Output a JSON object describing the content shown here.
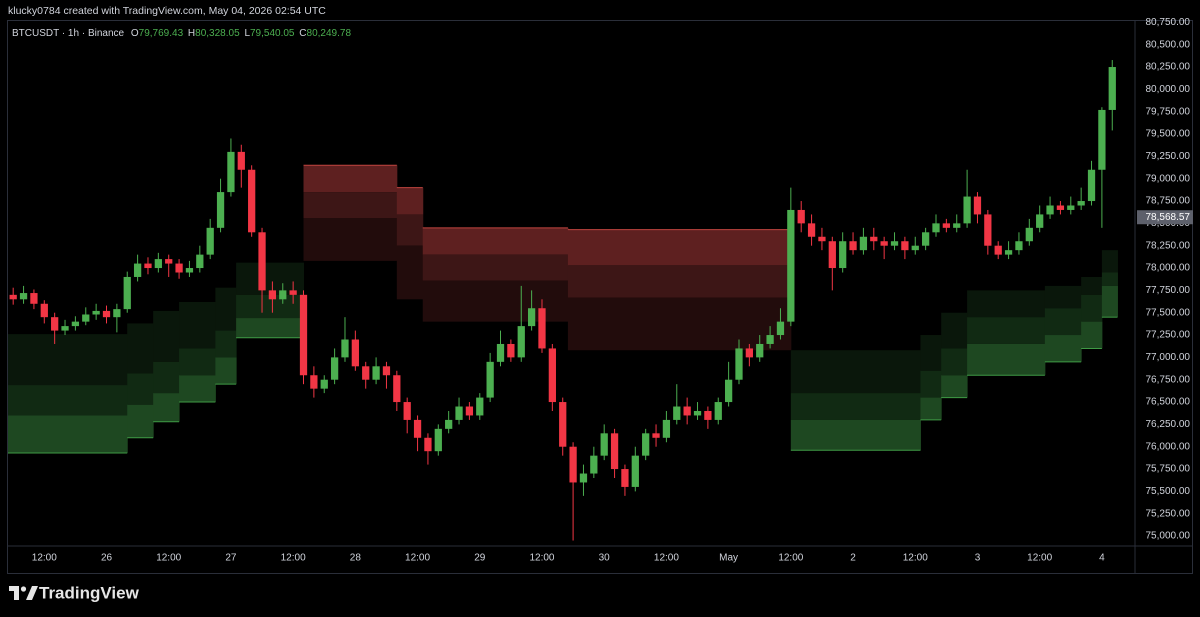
{
  "header": {
    "attribution": "klucky0784 created with TradingView.com, May 04, 2026 02:54 UTC"
  },
  "footer": {
    "brand": "TradingView"
  },
  "chart_data": {
    "type": "candlestick",
    "title": "BTCUSDT · 1h · Binance",
    "ohlc_labels": [
      {
        "key": "O",
        "text": "79,769.43"
      },
      {
        "key": "H",
        "text": "80,328.05"
      },
      {
        "key": "L",
        "text": "79,540.05"
      },
      {
        "key": "C",
        "text": "80,249.78"
      }
    ],
    "up_color": "#4caf50",
    "down_color": "#f23645",
    "x": [
      6,
      8,
      10,
      12,
      14,
      16,
      18,
      20,
      22,
      24,
      26,
      28,
      30,
      32,
      34,
      36,
      38,
      40,
      42,
      44,
      46,
      48,
      50,
      52,
      54,
      56,
      58,
      60,
      62,
      64,
      66,
      68,
      70,
      72,
      74,
      76,
      78,
      80,
      82,
      84,
      86,
      88,
      90,
      92,
      94,
      96,
      98,
      100,
      102,
      104,
      106,
      108,
      110,
      112,
      114,
      116,
      118,
      120,
      122,
      124,
      126,
      128,
      130,
      132,
      134,
      136,
      138,
      140,
      142,
      144,
      146,
      148,
      150,
      152,
      154,
      156,
      158,
      160,
      162,
      164,
      166,
      168,
      170,
      172,
      174,
      176,
      178,
      180,
      182,
      184,
      186,
      188,
      190,
      192,
      194,
      196,
      198,
      200,
      202,
      204,
      206,
      208,
      210,
      212,
      214,
      216,
      218
    ],
    "open": [
      77700,
      77650,
      77720,
      77600,
      77450,
      77300,
      77350,
      77400,
      77480,
      77520,
      77450,
      77540,
      77900,
      78050,
      78000,
      78100,
      78050,
      77950,
      78000,
      78150,
      78450,
      78850,
      79300,
      79100,
      78400,
      77750,
      77650,
      77750,
      77700,
      76800,
      76650,
      76750,
      77000,
      77200,
      76900,
      76750,
      76900,
      76800,
      76500,
      76300,
      76100,
      75950,
      76200,
      76300,
      76450,
      76350,
      76550,
      76950,
      77150,
      77000,
      77350,
      77550,
      77100,
      76500,
      76000,
      75600,
      75700,
      75900,
      76150,
      75750,
      75550,
      75900,
      76150,
      76100,
      76300,
      76450,
      76350,
      76400,
      76300,
      76500,
      76750,
      77100,
      77000,
      77150,
      77250,
      77400,
      78650,
      78500,
      78350,
      78300,
      78000,
      78300,
      78200,
      78350,
      78300,
      78250,
      78300,
      78200,
      78250,
      78400,
      78500,
      78450,
      78500,
      78800,
      78600,
      78250,
      78150,
      78200,
      78300,
      78450,
      78600,
      78700,
      78650,
      78700,
      78750,
      79100,
      79769.43
    ],
    "high": [
      77780,
      77800,
      77760,
      77640,
      77500,
      77420,
      77460,
      77560,
      77600,
      77580,
      77600,
      77960,
      78150,
      78120,
      78170,
      78150,
      78100,
      78080,
      78250,
      78550,
      79000,
      79450,
      79380,
      79150,
      78450,
      77850,
      77830,
      77850,
      77750,
      76900,
      76800,
      77100,
      77450,
      77300,
      76950,
      77000,
      76950,
      76850,
      76550,
      76350,
      76150,
      76250,
      76400,
      76550,
      76500,
      76600,
      77050,
      77300,
      77200,
      77800,
      77750,
      77650,
      77150,
      76550,
      76050,
      75800,
      76000,
      76250,
      76200,
      75800,
      76000,
      76200,
      76250,
      76400,
      76700,
      76550,
      76500,
      76450,
      76550,
      76950,
      77200,
      77150,
      77250,
      77350,
      77550,
      78900,
      78750,
      78600,
      78450,
      78350,
      78400,
      78400,
      78450,
      78450,
      78350,
      78400,
      78350,
      78350,
      78450,
      78600,
      78550,
      78600,
      79100,
      78850,
      78650,
      78300,
      78300,
      78400,
      78550,
      78700,
      78800,
      78750,
      78800,
      78900,
      79200,
      79800,
      80328.05
    ],
    "low": [
      77590,
      77600,
      77540,
      77380,
      77150,
      77250,
      77300,
      77360,
      77420,
      77380,
      77280,
      77500,
      77850,
      77930,
      77950,
      77900,
      77880,
      77900,
      77950,
      78100,
      78400,
      78800,
      78900,
      78350,
      77500,
      77500,
      77600,
      77600,
      76700,
      76550,
      76600,
      76700,
      76950,
      76850,
      76650,
      76700,
      76650,
      76400,
      76150,
      75950,
      75800,
      75900,
      76150,
      76250,
      76300,
      76300,
      76500,
      76900,
      76950,
      76950,
      77300,
      77050,
      76400,
      75900,
      74950,
      75450,
      75650,
      75850,
      75650,
      75450,
      75500,
      75850,
      76000,
      76050,
      76250,
      76250,
      76300,
      76200,
      76250,
      76450,
      76700,
      76900,
      76950,
      77100,
      77200,
      77350,
      78400,
      78250,
      78200,
      77750,
      77950,
      78150,
      78150,
      78200,
      78100,
      78200,
      78100,
      78150,
      78200,
      78350,
      78400,
      78400,
      78450,
      78500,
      78150,
      78100,
      78100,
      78150,
      78250,
      78400,
      78550,
      78600,
      78600,
      78650,
      78700,
      78450,
      79540.05
    ],
    "close": [
      77650,
      77720,
      77600,
      77450,
      77300,
      77350,
      77400,
      77480,
      77520,
      77450,
      77540,
      77900,
      78050,
      78000,
      78100,
      78050,
      77950,
      78000,
      78150,
      78450,
      78850,
      79300,
      79100,
      78400,
      77750,
      77650,
      77750,
      77700,
      76800,
      76650,
      76750,
      77000,
      77200,
      76900,
      76750,
      76900,
      76800,
      76500,
      76300,
      76100,
      75950,
      76200,
      76300,
      76450,
      76350,
      76550,
      76950,
      77150,
      77000,
      77350,
      77550,
      77100,
      76500,
      76000,
      75600,
      75700,
      75900,
      76150,
      75750,
      75550,
      75900,
      76150,
      76100,
      76300,
      76450,
      76350,
      76400,
      76300,
      76500,
      76750,
      77100,
      77000,
      77150,
      77250,
      77400,
      78650,
      78500,
      78350,
      78300,
      78000,
      78300,
      78200,
      78350,
      78300,
      78250,
      78300,
      78200,
      78250,
      78400,
      78500,
      78450,
      78500,
      78800,
      78600,
      78250,
      78150,
      78200,
      78300,
      78450,
      78600,
      78700,
      78650,
      78700,
      78750,
      79100,
      79769.43,
      80249.78
    ],
    "zones": [
      {
        "fills": [
          "#0a170b",
          "#112a13",
          "#1e4821"
        ],
        "edge": "bottom",
        "edge_color": "#3f9a45",
        "steps": [
          {
            "x": [
              5,
              28
            ],
            "levels": [
              77260,
              76690,
              76350,
              75930
            ]
          },
          {
            "x": [
              28,
              33
            ],
            "levels": [
              77380,
              76820,
              76470,
              76100
            ]
          },
          {
            "x": [
              33,
              38
            ],
            "levels": [
              77520,
              76950,
              76600,
              76280
            ]
          },
          {
            "x": [
              38,
              45
            ],
            "levels": [
              77620,
              77100,
              76800,
              76500
            ]
          },
          {
            "x": [
              45,
              49
            ],
            "levels": [
              77780,
              77300,
              77000,
              76700
            ]
          },
          {
            "x": [
              49,
              62
            ],
            "levels": [
              78060,
              77700,
              77440,
              77220
            ]
          }
        ]
      },
      {
        "fills": [
          "#5e2020",
          "#3d1616",
          "#220c0c"
        ],
        "edge": "top",
        "edge_color": "#c0443f",
        "steps": [
          {
            "x": [
              62,
              80
            ],
            "levels": [
              79150,
              78850,
              78560,
              78080
            ]
          },
          {
            "x": [
              80,
              85
            ],
            "levels": [
              78900,
              78600,
              78250,
              77650
            ]
          },
          {
            "x": [
              85,
              113
            ],
            "levels": [
              78450,
              78150,
              77860,
              77400
            ]
          },
          {
            "x": [
              113,
              156
            ],
            "levels": [
              78430,
              78030,
              77670,
              77080
            ]
          }
        ]
      },
      {
        "fills": [
          "#0a170b",
          "#112a13",
          "#1e4821"
        ],
        "edge": "bottom",
        "edge_color": "#3f9a45",
        "steps": [
          {
            "x": [
              156,
              181
            ],
            "levels": [
              77080,
              76600,
              76300,
              75960
            ]
          },
          {
            "x": [
              181,
              185
            ],
            "levels": [
              77250,
              76850,
              76550,
              76300
            ]
          },
          {
            "x": [
              185,
              190
            ],
            "levels": [
              77500,
              77100,
              76800,
              76550
            ]
          },
          {
            "x": [
              190,
              205
            ],
            "levels": [
              77750,
              77450,
              77150,
              76800
            ]
          },
          {
            "x": [
              205,
              212
            ],
            "levels": [
              77800,
              77550,
              77250,
              76950
            ]
          },
          {
            "x": [
              212,
              216
            ],
            "levels": [
              77900,
              77700,
              77400,
              77100
            ]
          },
          {
            "x": [
              216,
              219
            ],
            "levels": [
              78200,
              77950,
              77800,
              77450
            ]
          }
        ]
      }
    ],
    "price_marker": {
      "value": 78568.57,
      "label": "78,568.57",
      "color": "#5d606b"
    },
    "xlim": [
      5,
      222
    ],
    "xticks": [
      {
        "value": 12,
        "label": "12:00"
      },
      {
        "value": 24,
        "label": "26"
      },
      {
        "value": 36,
        "label": "12:00"
      },
      {
        "value": 48,
        "label": "27"
      },
      {
        "value": 60,
        "label": "12:00"
      },
      {
        "value": 72,
        "label": "28"
      },
      {
        "value": 84,
        "label": "12:00"
      },
      {
        "value": 96,
        "label": "29"
      },
      {
        "value": 108,
        "label": "12:00"
      },
      {
        "value": 120,
        "label": "30"
      },
      {
        "value": 132,
        "label": "12:00"
      },
      {
        "value": 144,
        "label": "May"
      },
      {
        "value": 156,
        "label": "12:00"
      },
      {
        "value": 168,
        "label": "2"
      },
      {
        "value": 180,
        "label": "12:00"
      },
      {
        "value": 192,
        "label": "3"
      },
      {
        "value": 204,
        "label": "12:00"
      },
      {
        "value": 216,
        "label": "4"
      }
    ],
    "ylim": [
      74900,
      81000
    ],
    "yticks": [
      {
        "value": 75000,
        "label": "75,000.00"
      },
      {
        "value": 75250,
        "label": "75,250.00"
      },
      {
        "value": 75500,
        "label": "75,500.00"
      },
      {
        "value": 75750,
        "label": "75,750.00"
      },
      {
        "value": 76000,
        "label": "76,000.00"
      },
      {
        "value": 76250,
        "label": "76,250.00"
      },
      {
        "value": 76500,
        "label": "76,500.00"
      },
      {
        "value": 76750,
        "label": "76,750.00"
      },
      {
        "value": 77000,
        "label": "77,000.00"
      },
      {
        "value": 77250,
        "label": "77,250.00"
      },
      {
        "value": 77500,
        "label": "77,500.00"
      },
      {
        "value": 77750,
        "label": "77,750.00"
      },
      {
        "value": 78000,
        "label": "78,000.00"
      },
      {
        "value": 78250,
        "label": "78,250.00"
      },
      {
        "value": 78500,
        "label": "78,500.00"
      },
      {
        "value": 78750,
        "label": "78,750.00"
      },
      {
        "value": 79000,
        "label": "79,000.00"
      },
      {
        "value": 79250,
        "label": "79,250.00"
      },
      {
        "value": 79500,
        "label": "79,500.00"
      },
      {
        "value": 79750,
        "label": "79,750.00"
      },
      {
        "value": 80000,
        "label": "80,000.00"
      },
      {
        "value": 80250,
        "label": "80,250.00"
      },
      {
        "value": 80500,
        "label": "80,500.00"
      },
      {
        "value": 80750,
        "label": "80,750.00"
      }
    ]
  }
}
